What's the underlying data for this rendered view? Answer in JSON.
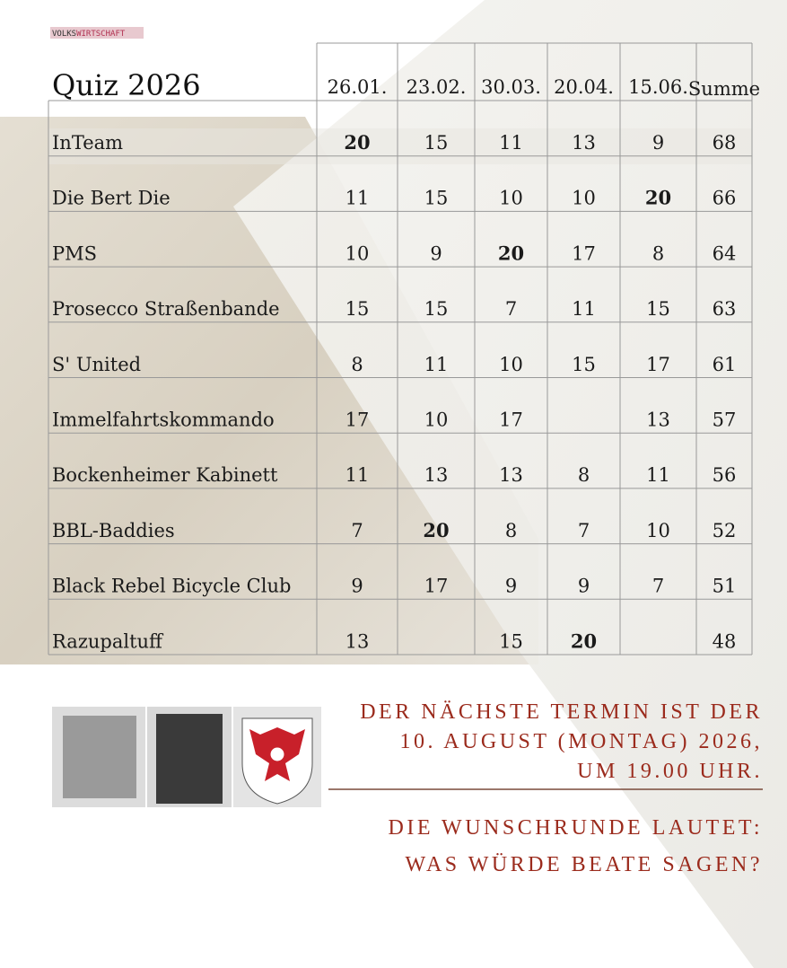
{
  "header": {
    "logo": [
      "VOLKS",
      "WIRTSCHAFT"
    ],
    "title": "Quiz 2026"
  },
  "table": {
    "columns": [
      "26.01.",
      "23.02.",
      "30.03.",
      "20.04.",
      "15.06.",
      "Summe"
    ],
    "rows": [
      [
        "InTeam",
        20,
        15,
        11,
        13,
        9,
        68
      ],
      [
        "Die Bert Die",
        11,
        15,
        10,
        10,
        20,
        66
      ],
      [
        "PMS",
        10,
        9,
        20,
        17,
        8,
        64
      ],
      [
        "Prosecco Straßenbande",
        15,
        15,
        7,
        11,
        15,
        63
      ],
      [
        "S' United",
        8,
        11,
        10,
        15,
        17,
        61
      ],
      [
        "Immelfahrtskommando",
        17,
        10,
        17,
        null,
        13,
        57
      ],
      [
        "Bockenheimer Kabinett",
        11,
        13,
        13,
        8,
        11,
        56
      ],
      [
        "BBL-Baddies",
        7,
        20,
        8,
        7,
        10,
        52
      ],
      [
        "Black Rebel Bicycle Club",
        9,
        17,
        9,
        9,
        7,
        51
      ],
      [
        "Razupaltuff",
        13,
        null,
        15,
        20,
        null,
        48
      ]
    ]
  },
  "notice": {
    "next_date": [
      "DER NÄCHSTE TERMIN IST DER",
      "10. AUGUST (MONTAG) 2026,",
      "UM 19.00 UHR."
    ],
    "wish_round": [
      "DIE WUNSCHRUNDE LAUTET:",
      "WAS WÜRDE BEATE SAGEN?"
    ]
  }
}
